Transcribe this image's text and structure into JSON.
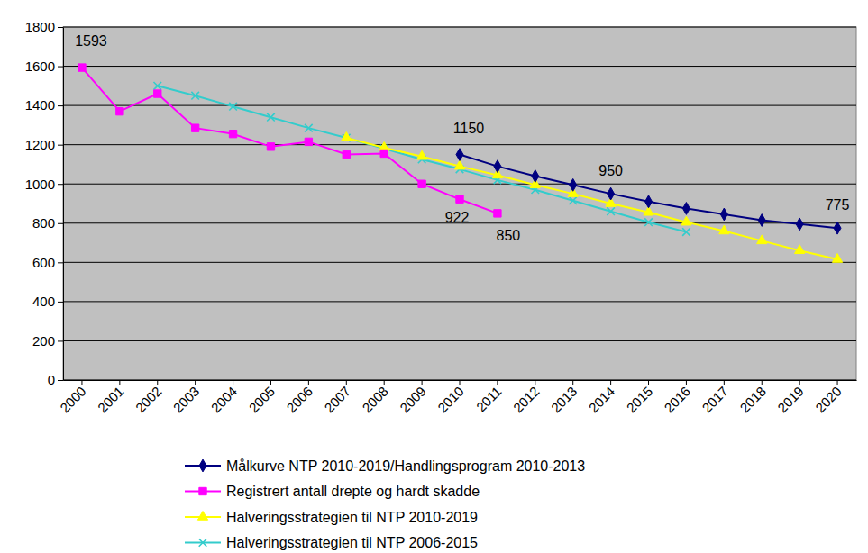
{
  "chart_data": {
    "type": "line",
    "categories": [
      "2000",
      "2001",
      "2002",
      "2003",
      "2004",
      "2005",
      "2006",
      "2007",
      "2008",
      "2009",
      "2010",
      "2011",
      "2012",
      "2013",
      "2014",
      "2015",
      "2016",
      "2017",
      "2018",
      "2019",
      "2020"
    ],
    "series": [
      {
        "name": "Målkurve NTP 2010-2019/Handlingsprogram 2010-2013",
        "color": "#000080",
        "marker": "diamond",
        "values": [
          null,
          null,
          null,
          null,
          null,
          null,
          null,
          null,
          null,
          null,
          1150,
          1090,
          1040,
          995,
          950,
          910,
          875,
          845,
          815,
          795,
          775
        ]
      },
      {
        "name": "Registrert antall drepte og hardt skadde",
        "color": "#ff00ff",
        "marker": "square",
        "values": [
          1593,
          1370,
          1460,
          1285,
          1255,
          1190,
          1215,
          1150,
          1155,
          1000,
          922,
          850,
          null,
          null,
          null,
          null,
          null,
          null,
          null,
          null,
          null
        ]
      },
      {
        "name": "Halveringsstrategien til NTP 2010-2019",
        "color": "#ffff00",
        "marker": "triangle",
        "values": [
          null,
          null,
          null,
          null,
          null,
          null,
          null,
          1235,
          1185,
          1140,
          1090,
          1045,
          995,
          950,
          900,
          855,
          805,
          760,
          710,
          660,
          615
        ]
      },
      {
        "name": "Halveringsstrategien til NTP 2006-2015",
        "color": "#33cccc",
        "marker": "x",
        "values": [
          null,
          null,
          1500,
          1450,
          1395,
          1340,
          1285,
          1235,
          1180,
          1125,
          1075,
          1020,
          970,
          915,
          860,
          805,
          755,
          null,
          null,
          null,
          null
        ]
      }
    ],
    "annotations": [
      {
        "label": "1593",
        "category": "2000",
        "value": 1593
      },
      {
        "label": "1150",
        "category": "2010",
        "value": 1150
      },
      {
        "label": "950",
        "category": "2014",
        "value": 950
      },
      {
        "label": "775",
        "category": "2020",
        "value": 775
      },
      {
        "label": "922",
        "category": "2010",
        "value": 922
      },
      {
        "label": "850",
        "category": "2011",
        "value": 850
      }
    ],
    "ylim": [
      0,
      1800
    ],
    "yticks": [
      0,
      200,
      400,
      600,
      800,
      1000,
      1200,
      1400,
      1600,
      1800
    ],
    "grid": true,
    "legend": "bottom"
  }
}
